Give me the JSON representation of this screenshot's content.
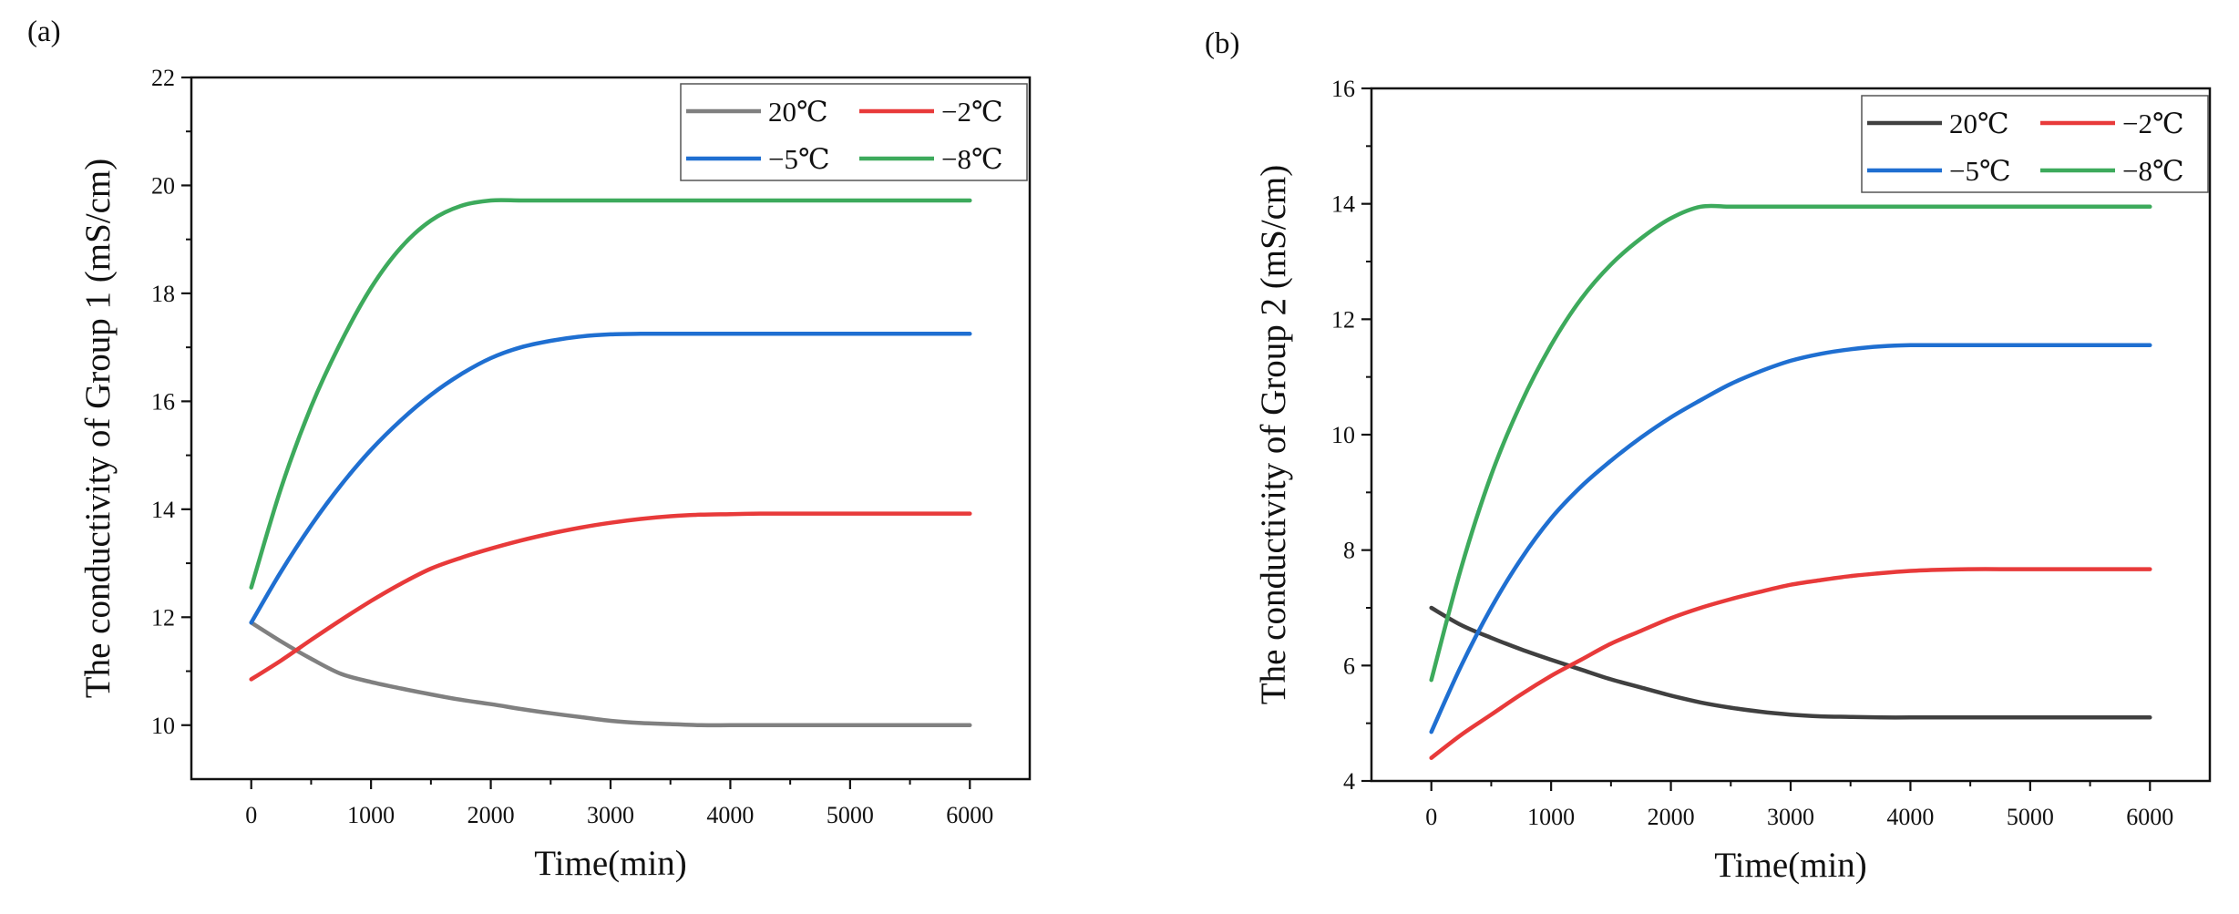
{
  "chart_data": [
    {
      "type": "line",
      "panel_label": "(a)",
      "title": "",
      "xlabel": "Time(min)",
      "ylabel": "The conductivity of Group 1 (mS/cm)",
      "xlim": [
        -500,
        6500
      ],
      "ylim": [
        9,
        22
      ],
      "xticks": [
        0,
        1000,
        2000,
        3000,
        4000,
        5000,
        6000
      ],
      "yticks": [
        10,
        12,
        14,
        16,
        18,
        20,
        22
      ],
      "x": [
        0,
        250,
        500,
        750,
        1000,
        1250,
        1500,
        1750,
        2000,
        2250,
        2500,
        2750,
        3000,
        3250,
        3500,
        3750,
        4000,
        4250,
        4500,
        4750,
        5000,
        5250,
        5500,
        5750,
        6000
      ],
      "series": [
        {
          "name": "20℃",
          "color": "#808080",
          "values": [
            11.9,
            11.55,
            11.23,
            10.95,
            10.8,
            10.68,
            10.57,
            10.47,
            10.39,
            10.3,
            10.22,
            10.15,
            10.08,
            10.04,
            10.02,
            10.0,
            10.0,
            10.0,
            10.0,
            10.0,
            10.0,
            10.0,
            10.0,
            10.0,
            10.0
          ]
        },
        {
          "name": "−2℃",
          "color": "#e83a3a",
          "values": [
            10.85,
            11.2,
            11.58,
            11.95,
            12.3,
            12.62,
            12.9,
            13.1,
            13.27,
            13.42,
            13.55,
            13.66,
            13.75,
            13.82,
            13.87,
            13.9,
            13.91,
            13.92,
            13.92,
            13.92,
            13.92,
            13.92,
            13.92,
            13.92,
            13.92
          ]
        },
        {
          "name": "−5℃",
          "color": "#1f6fd1",
          "values": [
            11.9,
            12.85,
            13.7,
            14.45,
            15.1,
            15.65,
            16.12,
            16.5,
            16.8,
            17.0,
            17.12,
            17.2,
            17.24,
            17.25,
            17.25,
            17.25,
            17.25,
            17.25,
            17.25,
            17.25,
            17.25,
            17.25,
            17.25,
            17.25,
            17.25
          ]
        },
        {
          "name": "−8℃",
          "color": "#3daa5c",
          "values": [
            12.55,
            14.4,
            15.9,
            17.1,
            18.1,
            18.85,
            19.35,
            19.62,
            19.72,
            19.72,
            19.72,
            19.72,
            19.72,
            19.72,
            19.72,
            19.72,
            19.72,
            19.72,
            19.72,
            19.72,
            19.72,
            19.72,
            19.72,
            19.72,
            19.72
          ]
        }
      ]
    },
    {
      "type": "line",
      "panel_label": "(b)",
      "title": "",
      "xlabel": "Time(min)",
      "ylabel": "The conductivity of Group 2 (mS/cm)",
      "xlim": [
        -500,
        6500
      ],
      "ylim": [
        4,
        16
      ],
      "xticks": [
        0,
        1000,
        2000,
        3000,
        4000,
        5000,
        6000
      ],
      "yticks": [
        4,
        6,
        8,
        10,
        12,
        14,
        16
      ],
      "x": [
        0,
        250,
        500,
        750,
        1000,
        1250,
        1500,
        1750,
        2000,
        2250,
        2500,
        2750,
        3000,
        3250,
        3500,
        3750,
        4000,
        4250,
        4500,
        4750,
        5000,
        5250,
        5500,
        5750,
        6000
      ],
      "series": [
        {
          "name": "20℃",
          "color": "#404040",
          "values": [
            7.0,
            6.7,
            6.48,
            6.28,
            6.1,
            5.93,
            5.76,
            5.62,
            5.48,
            5.36,
            5.27,
            5.2,
            5.15,
            5.12,
            5.11,
            5.1,
            5.1,
            5.1,
            5.1,
            5.1,
            5.1,
            5.1,
            5.1,
            5.1,
            5.1
          ]
        },
        {
          "name": "−2℃",
          "color": "#e83a3a",
          "values": [
            4.4,
            4.8,
            5.15,
            5.5,
            5.82,
            6.1,
            6.38,
            6.6,
            6.82,
            7.0,
            7.15,
            7.28,
            7.4,
            7.48,
            7.55,
            7.6,
            7.64,
            7.66,
            7.67,
            7.67,
            7.67,
            7.67,
            7.67,
            7.67,
            7.67
          ]
        },
        {
          "name": "−5℃",
          "color": "#1f6fd1",
          "values": [
            4.85,
            6.0,
            7.0,
            7.85,
            8.55,
            9.1,
            9.55,
            9.95,
            10.3,
            10.6,
            10.88,
            11.1,
            11.28,
            11.4,
            11.48,
            11.53,
            11.55,
            11.55,
            11.55,
            11.55,
            11.55,
            11.55,
            11.55,
            11.55,
            11.55
          ]
        },
        {
          "name": "−8℃",
          "color": "#3daa5c",
          "values": [
            5.75,
            7.7,
            9.3,
            10.55,
            11.55,
            12.35,
            12.95,
            13.4,
            13.75,
            13.95,
            13.95,
            13.95,
            13.95,
            13.95,
            13.95,
            13.95,
            13.95,
            13.95,
            13.95,
            13.95,
            13.95,
            13.95,
            13.95,
            13.95,
            13.95
          ]
        }
      ]
    }
  ]
}
